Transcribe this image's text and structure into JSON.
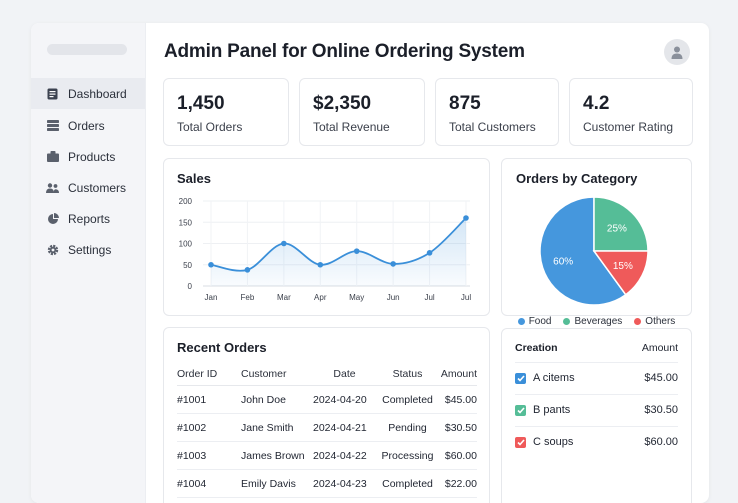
{
  "page": {
    "title": "Admin Panel for Online Ordering System"
  },
  "sidebar": {
    "items": [
      {
        "label": "Dashboard",
        "icon": "document-icon",
        "active": true
      },
      {
        "label": "Orders",
        "icon": "list-icon"
      },
      {
        "label": "Products",
        "icon": "box-icon"
      },
      {
        "label": "Customers",
        "icon": "users-icon"
      },
      {
        "label": "Reports",
        "icon": "pie-icon"
      },
      {
        "label": "Settings",
        "icon": "gear-icon"
      }
    ]
  },
  "kpis": [
    {
      "value": "1,450",
      "label": "Total Orders"
    },
    {
      "value": "$2,350",
      "label": "Total Revenue"
    },
    {
      "value": "875",
      "label": "Total Customers"
    },
    {
      "value": "4.2",
      "label": "Customer Rating"
    }
  ],
  "sales": {
    "title": "Sales",
    "chart_data": {
      "type": "line",
      "categories": [
        "Jan",
        "Feb",
        "Mar",
        "Apr",
        "May",
        "Jun",
        "Jul",
        "Jul"
      ],
      "values": [
        50,
        38,
        100,
        50,
        82,
        52,
        78,
        160
      ],
      "y_ticks": [
        "200",
        "150",
        "100",
        "50",
        "0"
      ],
      "ylim": [
        0,
        200
      ],
      "color": "#3a8fd9"
    }
  },
  "category": {
    "title": "Orders by Category",
    "chart_data": {
      "type": "pie",
      "slices": [
        {
          "name": "Food",
          "value": 60,
          "label": "60%",
          "color": "#4597dd"
        },
        {
          "name": "Beverages",
          "value": 25,
          "label": "25%",
          "color": "#55bd97"
        },
        {
          "name": "Others",
          "value": 15,
          "label": "15%",
          "color": "#ef5a5a"
        }
      ]
    }
  },
  "recent_orders": {
    "title": "Recent Orders",
    "headers": {
      "id": "Order ID",
      "customer": "Customer",
      "date": "Date",
      "status": "Status",
      "amount": "Amount"
    },
    "rows": [
      {
        "id": "#1001",
        "customer": "John Doe",
        "date": "2024-04-20",
        "status": "Completed",
        "amount": "$45.00"
      },
      {
        "id": "#1002",
        "customer": "Jane Smith",
        "date": "2024-04-21",
        "status": "Pending",
        "amount": "$30.50"
      },
      {
        "id": "#1003",
        "customer": "James Brown",
        "date": "2024-04-22",
        "status": "Processing",
        "amount": "$60.00"
      },
      {
        "id": "#1004",
        "customer": "Emily Davis",
        "date": "2024-04-23",
        "status": "Completed",
        "amount": "$22.00"
      }
    ]
  },
  "creation": {
    "headers": {
      "name": "Creation",
      "amount": "Amount"
    },
    "rows": [
      {
        "label": "A citems",
        "amount": "$45.00",
        "color": "#3a8fd9"
      },
      {
        "label": "B pants",
        "amount": "$30.50",
        "color": "#55bd97"
      },
      {
        "label": "C soups",
        "amount": "$60.00",
        "color": "#ef5a5a"
      }
    ]
  }
}
